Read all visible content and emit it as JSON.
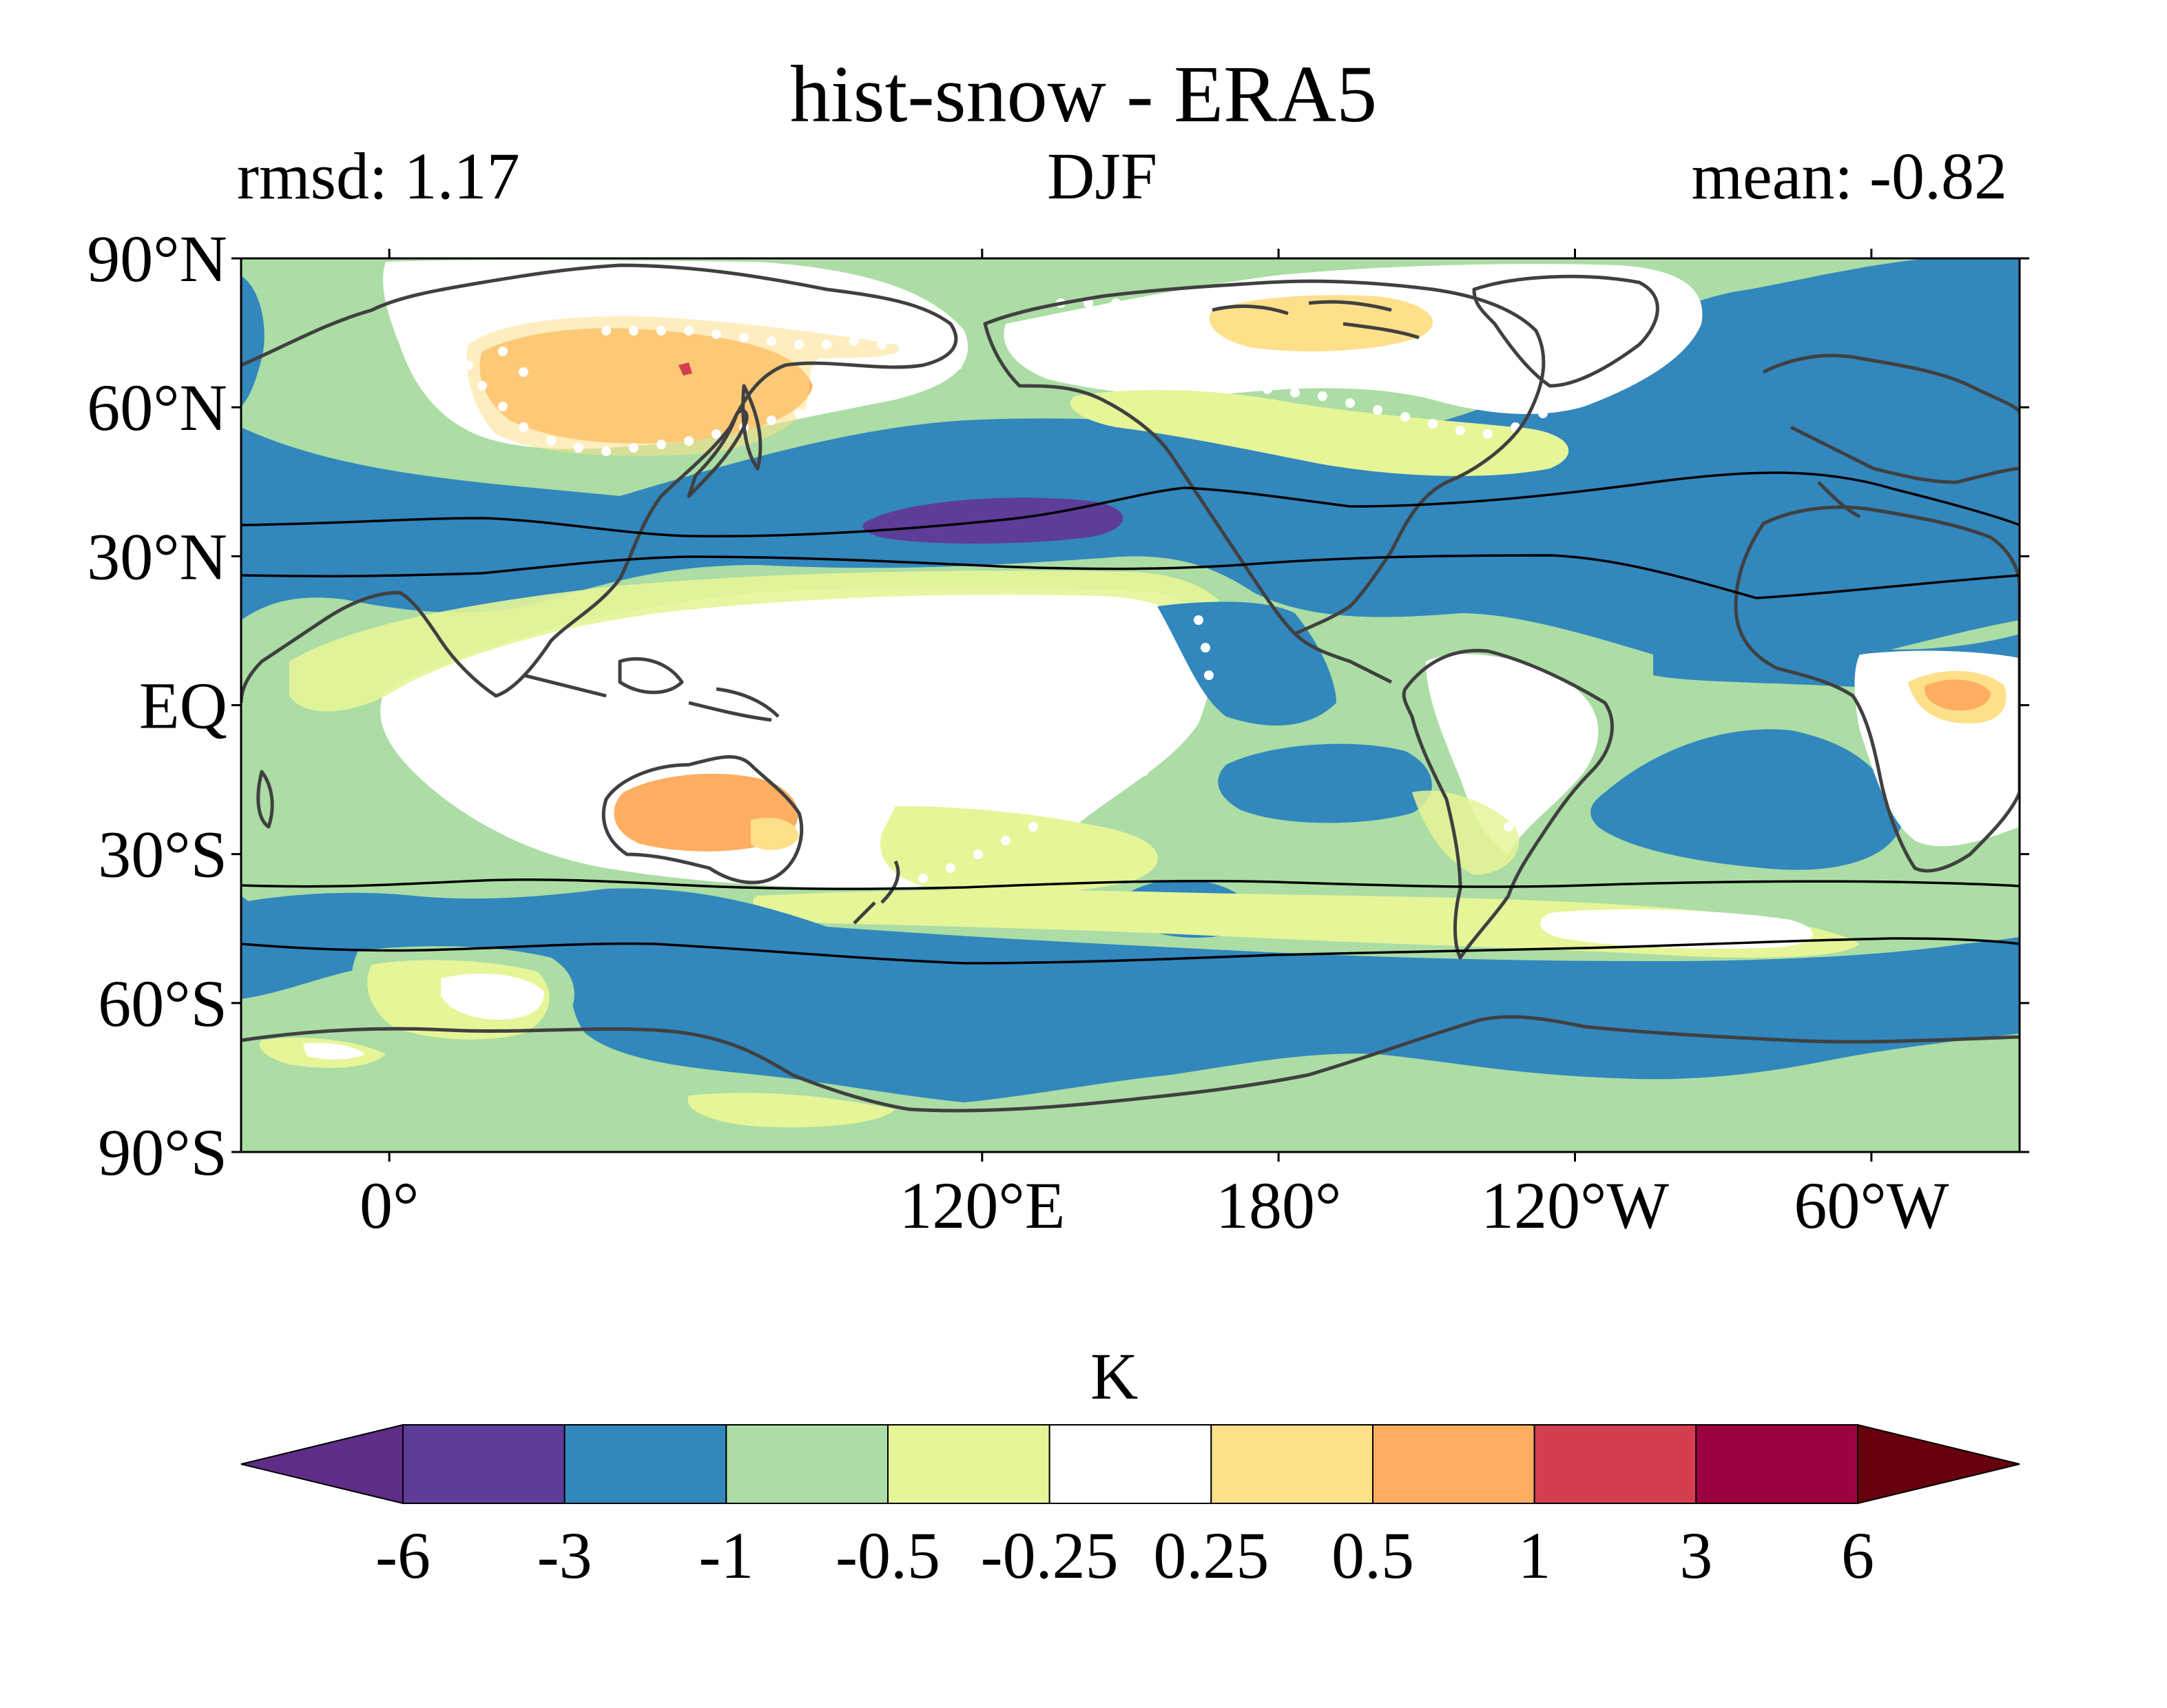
{
  "title": "hist-snow - ERA5",
  "left_label": "rmsd: 1.17",
  "center_label": "DJF",
  "right_label": "mean: -0.82",
  "map": {
    "projection": "PlateCarree",
    "central_longitude": 150,
    "lat_ticks": [
      "90°N",
      "60°N",
      "30°N",
      "EQ",
      "30°S",
      "60°S",
      "90°S"
    ],
    "lat_values": [
      90,
      60,
      30,
      0,
      -30,
      -60,
      -90
    ],
    "lon_ticks": [
      "120°E",
      "180°",
      "120°W",
      "60°W",
      "0°"
    ],
    "lon_values": [
      120,
      180,
      -120,
      -60,
      0
    ]
  },
  "colorbar": {
    "units": "K",
    "boundaries": [
      "-6",
      "-3",
      "-1",
      "-0.5",
      "-0.25",
      "0.25",
      "0.5",
      "1",
      "3",
      "6"
    ],
    "colors": [
      "#5e3c99",
      "#3287bd",
      "#abdda4",
      "#e6f598",
      "#ffffff",
      "#fee08b",
      "#fdae61",
      "#d53e4f",
      "#9e0142"
    ],
    "extend_low_color": "#5e2d87",
    "extend_high_color": "#67000d"
  },
  "colors": {
    "strong_neg": "#5e3c99",
    "neg": "#3287bd",
    "weak_neg": "#abdda4",
    "slight_neg": "#e6f598",
    "near_zero": "#ffffff",
    "slight_pos": "#fee08b",
    "pos": "#fdae61",
    "strong_pos": "#d53e4f",
    "coastline": "#404040",
    "jet_line": "#000000"
  }
}
